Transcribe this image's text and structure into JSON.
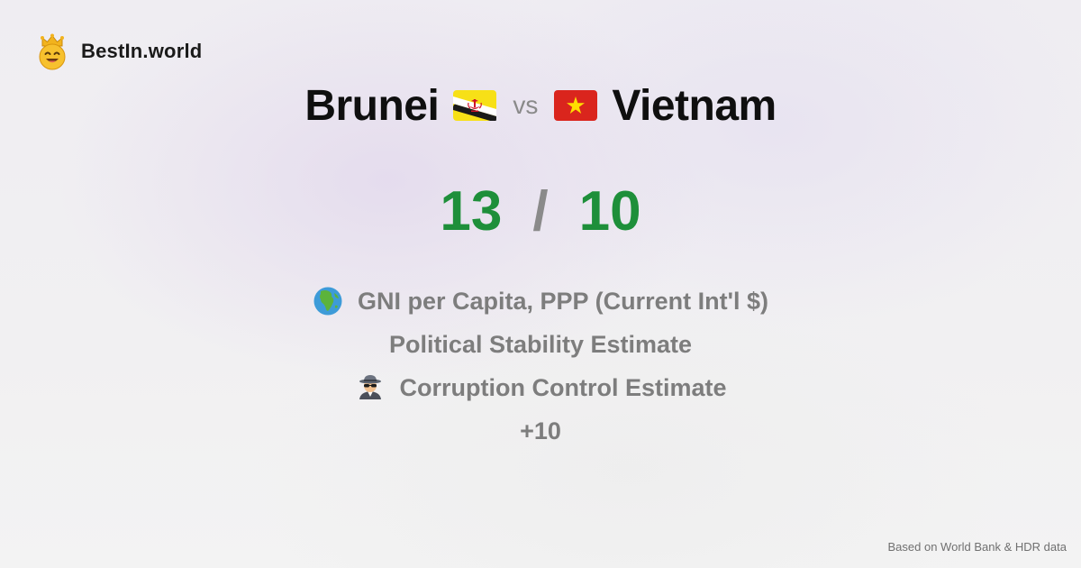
{
  "brand": {
    "name": "BestIn.world",
    "logo_icon": "crown-smiley-icon"
  },
  "comparison": {
    "left": {
      "country": "Brunei",
      "flag_icon": "brunei-flag-icon",
      "score": "13"
    },
    "separator": "vs",
    "right": {
      "country": "Vietnam",
      "flag_icon": "vietnam-flag-icon",
      "score": "10"
    },
    "score_separator": "/"
  },
  "metrics": [
    {
      "icon": "globe-africa-icon",
      "label": "GNI per Capita, PPP (Current Int'l $)"
    },
    {
      "icon": "",
      "label": "Political Stability Estimate"
    },
    {
      "icon": "detective-icon",
      "label": "Corruption Control Estimate"
    },
    {
      "icon": "",
      "label": "+10"
    }
  ],
  "footer": {
    "source": "Based on World Bank & HDR data"
  },
  "colors": {
    "score": "#1e8f3a",
    "muted": "#7d7d7d",
    "title": "#0f0f0f"
  }
}
